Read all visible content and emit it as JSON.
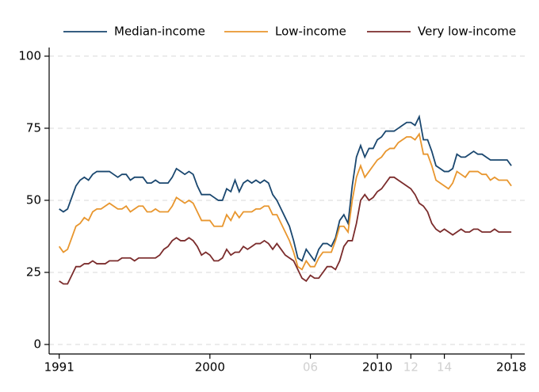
{
  "chart_data": {
    "type": "line",
    "x": [
      1991,
      1991.25,
      1991.5,
      1991.75,
      1992,
      1992.25,
      1992.5,
      1992.75,
      1993,
      1993.25,
      1993.5,
      1993.75,
      1994,
      1994.25,
      1994.5,
      1994.75,
      1995,
      1995.25,
      1995.5,
      1995.75,
      1996,
      1996.25,
      1996.5,
      1996.75,
      1997,
      1997.25,
      1997.5,
      1997.75,
      1998,
      1998.25,
      1998.5,
      1998.75,
      1999,
      1999.25,
      1999.5,
      1999.75,
      2000,
      2000.25,
      2000.5,
      2000.75,
      2001,
      2001.25,
      2001.5,
      2001.75,
      2002,
      2002.25,
      2002.5,
      2002.75,
      2003,
      2003.25,
      2003.5,
      2003.75,
      2004,
      2004.25,
      2004.5,
      2004.75,
      2005,
      2005.25,
      2005.5,
      2005.75,
      2006,
      2006.25,
      2006.5,
      2006.75,
      2007,
      2007.25,
      2007.5,
      2007.75,
      2008,
      2008.25,
      2008.5,
      2008.75,
      2009,
      2009.25,
      2009.5,
      2009.75,
      2010,
      2010.25,
      2010.5,
      2010.75,
      2011,
      2011.25,
      2011.5,
      2011.75,
      2012,
      2012.25,
      2012.5,
      2012.75,
      2013,
      2013.25,
      2013.5,
      2013.75,
      2014,
      2014.25,
      2014.5,
      2014.75,
      2015,
      2015.25,
      2015.5,
      2015.75,
      2016,
      2016.25,
      2016.5,
      2016.75,
      2017,
      2017.25,
      2017.5,
      2017.75,
      2018
    ],
    "series": [
      {
        "name": "Median-income",
        "color": "#1a476f",
        "values": [
          47,
          46,
          47,
          51,
          55,
          57,
          58,
          57,
          59,
          60,
          60,
          60,
          60,
          59,
          58,
          59,
          59,
          57,
          58,
          58,
          58,
          56,
          56,
          57,
          56,
          56,
          56,
          58,
          61,
          60,
          59,
          60,
          59,
          55,
          52,
          52,
          52,
          51,
          50,
          50,
          54,
          53,
          57,
          53,
          56,
          57,
          56,
          57,
          56,
          57,
          56,
          52,
          50,
          47,
          44,
          41,
          36,
          30,
          29,
          33,
          31,
          29,
          33,
          35,
          35,
          34,
          37,
          43,
          45,
          42,
          55,
          65,
          69,
          65,
          68,
          68,
          71,
          72,
          74,
          74,
          74,
          75,
          76,
          77,
          77,
          76,
          79,
          71,
          71,
          67,
          62,
          61,
          60,
          60,
          61,
          66,
          65,
          65,
          66,
          67,
          66,
          66,
          65,
          64,
          64,
          64,
          64,
          64,
          62
        ]
      },
      {
        "name": "Low-income",
        "color": "#e8962e",
        "values": [
          34,
          32,
          33,
          37,
          41,
          42,
          44,
          43,
          46,
          47,
          47,
          48,
          49,
          48,
          47,
          47,
          48,
          46,
          47,
          48,
          48,
          46,
          46,
          47,
          46,
          46,
          46,
          48,
          51,
          50,
          49,
          50,
          49,
          46,
          43,
          43,
          43,
          41,
          41,
          41,
          45,
          43,
          46,
          44,
          46,
          46,
          46,
          47,
          47,
          48,
          48,
          45,
          45,
          42,
          39,
          36,
          32,
          27,
          26,
          29,
          27,
          27,
          30,
          32,
          32,
          32,
          36,
          41,
          41,
          39,
          50,
          58,
          62,
          58,
          60,
          62,
          64,
          65,
          67,
          68,
          68,
          70,
          71,
          72,
          72,
          71,
          73,
          66,
          66,
          62,
          57,
          56,
          55,
          54,
          56,
          60,
          59,
          58,
          60,
          60,
          60,
          59,
          59,
          57,
          58,
          57,
          57,
          57,
          55
        ]
      },
      {
        "name": "Very low-income",
        "color": "#7b2c2c",
        "values": [
          22,
          21,
          21,
          24,
          27,
          27,
          28,
          28,
          29,
          28,
          28,
          28,
          29,
          29,
          29,
          30,
          30,
          30,
          29,
          30,
          30,
          30,
          30,
          30,
          31,
          33,
          34,
          36,
          37,
          36,
          36,
          37,
          36,
          34,
          31,
          32,
          31,
          29,
          29,
          30,
          33,
          31,
          32,
          32,
          34,
          33,
          34,
          35,
          35,
          36,
          35,
          33,
          35,
          33,
          31,
          30,
          29,
          26,
          23,
          22,
          24,
          23,
          23,
          25,
          27,
          27,
          26,
          29,
          34,
          36,
          36,
          42,
          50,
          52,
          50,
          51,
          53,
          54,
          56,
          58,
          58,
          57,
          56,
          55,
          54,
          52,
          49,
          48,
          46,
          42,
          40,
          39,
          40,
          39,
          38,
          39,
          40,
          39,
          39,
          40,
          40,
          39,
          39,
          39,
          40,
          39,
          39,
          39,
          39
        ]
      }
    ],
    "xlim": [
      1990.4,
      2018.8
    ],
    "xticks": [
      1991,
      2000,
      {
        "value": 2006,
        "label": "06"
      },
      2010,
      {
        "value": 2012,
        "label": "12"
      },
      {
        "value": 2014,
        "label": "14"
      },
      2018
    ],
    "xtick_colors": [
      "#000000",
      "#000000",
      "#d0d0d0",
      "#000000",
      "#d0d0d0",
      "#d0d0d0",
      "#000000"
    ],
    "ylim": [
      -3.3,
      103
    ],
    "yticks": [
      0,
      25,
      50,
      75,
      100
    ],
    "grid": true,
    "legend": "top"
  }
}
